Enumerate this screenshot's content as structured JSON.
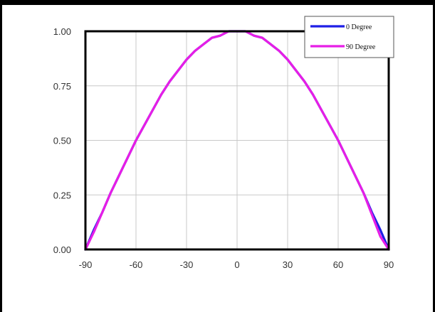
{
  "chart_data": {
    "type": "line",
    "title": "",
    "xlabel": "",
    "ylabel": "",
    "xlim": [
      -90,
      90
    ],
    "ylim": [
      0,
      1
    ],
    "x_ticks": [
      -90,
      -60,
      -30,
      0,
      30,
      60,
      90
    ],
    "x_tick_labels": [
      "-90",
      "-60",
      "-30",
      "0",
      "30",
      "60",
      "90"
    ],
    "y_ticks": [
      0,
      0.25,
      0.5,
      0.75,
      1
    ],
    "y_tick_labels": [
      "0.00",
      "0.25",
      "0.50",
      "0.75",
      "1.00"
    ],
    "grid": true,
    "legend_position": "top-right",
    "x": [
      -90,
      -85,
      -80,
      -75,
      -70,
      -65,
      -60,
      -55,
      -50,
      -45,
      -40,
      -35,
      -30,
      -25,
      -20,
      -15,
      -10,
      -5,
      0,
      5,
      10,
      15,
      20,
      25,
      30,
      35,
      40,
      45,
      50,
      55,
      60,
      65,
      70,
      75,
      80,
      85,
      90
    ],
    "series": [
      {
        "name": "0 Degree",
        "color": "#1f1fe6",
        "values": [
          0,
          0.09,
          0.17,
          0.26,
          0.34,
          0.42,
          0.5,
          0.57,
          0.64,
          0.71,
          0.77,
          0.82,
          0.87,
          0.91,
          0.94,
          0.97,
          0.98,
          1.0,
          1.0,
          1.0,
          0.98,
          0.97,
          0.94,
          0.91,
          0.87,
          0.82,
          0.77,
          0.71,
          0.64,
          0.57,
          0.5,
          0.42,
          0.34,
          0.26,
          0.17,
          0.09,
          0
        ]
      },
      {
        "name": "90 Degree",
        "color": "#e61ee6",
        "values": [
          0,
          0.08,
          0.17,
          0.26,
          0.34,
          0.42,
          0.5,
          0.57,
          0.64,
          0.71,
          0.77,
          0.82,
          0.87,
          0.91,
          0.94,
          0.97,
          0.98,
          1.0,
          1.0,
          1.0,
          0.98,
          0.97,
          0.94,
          0.91,
          0.87,
          0.82,
          0.77,
          0.71,
          0.64,
          0.57,
          0.5,
          0.42,
          0.34,
          0.26,
          0.16,
          0.06,
          0
        ]
      }
    ]
  }
}
